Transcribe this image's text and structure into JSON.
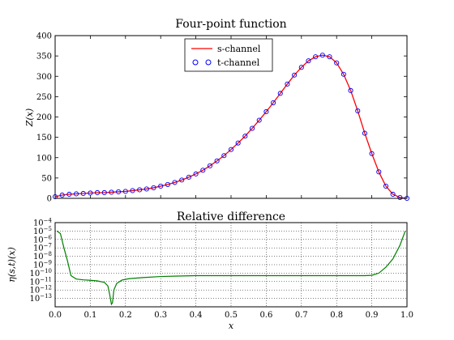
{
  "chart_data": [
    {
      "type": "line",
      "title": "Four-point function",
      "ylabel": "Z(x)",
      "xlabel": "",
      "xlim": [
        0,
        1.0
      ],
      "ylim": [
        0,
        400
      ],
      "yticks": [
        "0",
        "50",
        "100",
        "150",
        "200",
        "250",
        "300",
        "350",
        "400"
      ],
      "grid": false,
      "legend": {
        "placement": "top-center",
        "entries": [
          "s-channel",
          "t-channel"
        ]
      },
      "series": [
        {
          "name": "s-channel",
          "style": "solid line",
          "color": "#ff0000"
        },
        {
          "name": "t-channel",
          "style": "open circle markers",
          "color": "#0000ff"
        }
      ],
      "x": [
        0.0,
        0.02,
        0.04,
        0.06,
        0.08,
        0.1,
        0.12,
        0.14,
        0.16,
        0.18,
        0.2,
        0.22,
        0.24,
        0.26,
        0.28,
        0.3,
        0.32,
        0.34,
        0.36,
        0.38,
        0.4,
        0.42,
        0.44,
        0.46,
        0.48,
        0.5,
        0.52,
        0.54,
        0.56,
        0.58,
        0.6,
        0.62,
        0.64,
        0.66,
        0.68,
        0.7,
        0.72,
        0.74,
        0.76,
        0.78,
        0.8,
        0.82,
        0.84,
        0.86,
        0.88,
        0.9,
        0.92,
        0.94,
        0.96,
        0.98,
        1.0
      ],
      "y": [
        4,
        8,
        10,
        11,
        12,
        13,
        14,
        14,
        15,
        16,
        17,
        19,
        21,
        23,
        26,
        30,
        34,
        39,
        45,
        52,
        60,
        69,
        80,
        92,
        105,
        120,
        136,
        153,
        172,
        192,
        213,
        235,
        258,
        281,
        303,
        322,
        338,
        348,
        352,
        348,
        333,
        305,
        265,
        215,
        160,
        110,
        65,
        30,
        10,
        2,
        0
      ]
    },
    {
      "type": "line",
      "title": "Relative difference",
      "ylabel": "η(s,t)(x)",
      "xlabel": "x",
      "xlim": [
        0,
        1.0
      ],
      "ylim": [
        1e-14,
        0.0001
      ],
      "yscale": "log",
      "grid": true,
      "xticks": [
        "0.0",
        "0.1",
        "0.2",
        "0.3",
        "0.4",
        "0.5",
        "0.6",
        "0.7",
        "0.8",
        "0.9",
        "1.0"
      ],
      "yticks": [
        "10^-13",
        "10^-12",
        "10^-11",
        "10^-10",
        "10^-9",
        "10^-8",
        "10^-7",
        "10^-6",
        "10^-5",
        "10^-4"
      ],
      "series": [
        {
          "color": "#008000",
          "x": [
            0.005,
            0.015,
            0.025,
            0.035,
            0.045,
            0.06,
            0.08,
            0.1,
            0.12,
            0.14,
            0.15,
            0.155,
            0.16,
            0.163,
            0.167,
            0.175,
            0.19,
            0.21,
            0.25,
            0.3,
            0.35,
            0.4,
            0.5,
            0.6,
            0.7,
            0.8,
            0.88,
            0.9,
            0.92,
            0.94,
            0.96,
            0.98,
            0.995
          ],
          "y": [
            1e-05,
            5e-06,
            1e-07,
            3e-09,
            5e-11,
            2e-11,
            1.6e-11,
            1.4e-11,
            1.2e-11,
            8e-12,
            3e-12,
            3e-13,
            2e-14,
            3e-14,
            1e-12,
            6e-12,
            1.5e-11,
            2.2e-11,
            3e-11,
            4e-11,
            4.5e-11,
            5e-11,
            5e-11,
            5e-11,
            5e-11,
            5e-11,
            5e-11,
            5.5e-11,
            1e-10,
            5e-10,
            5e-09,
            2e-07,
            1e-05
          ]
        }
      ]
    }
  ]
}
